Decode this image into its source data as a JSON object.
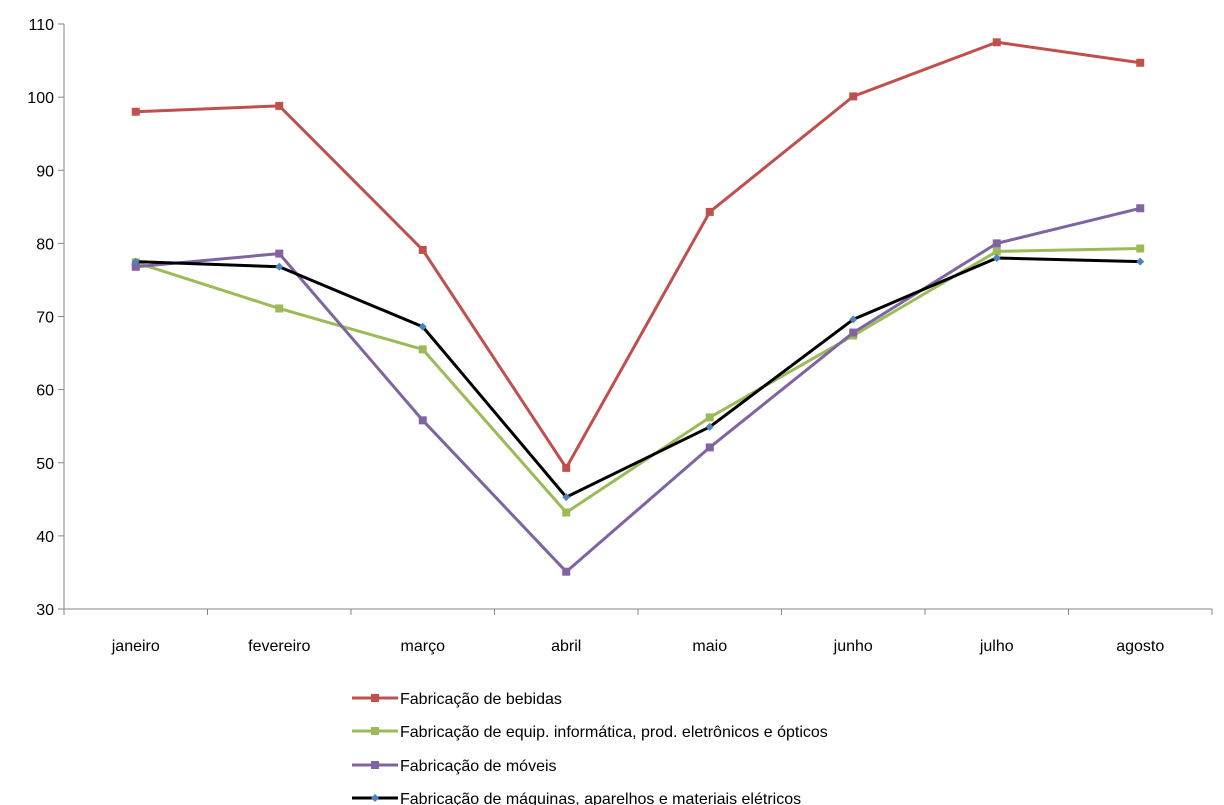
{
  "chart_data": {
    "type": "line",
    "title": "",
    "xlabel": "",
    "ylabel": "",
    "categories": [
      "janeiro",
      "fevereiro",
      "março",
      "abril",
      "maio",
      "junho",
      "julho",
      "agosto"
    ],
    "ylim": [
      30,
      110
    ],
    "yticks": [
      30,
      40,
      50,
      60,
      70,
      80,
      90,
      100,
      110
    ],
    "ytick_labels": [
      "30",
      "40",
      "50",
      "60",
      "70",
      "80",
      "90",
      "100",
      "110"
    ],
    "grid": false,
    "legend_position": "bottom",
    "series": [
      {
        "name": "Fabricação de bebidas",
        "color": "#c0504d",
        "marker": "square",
        "values": [
          98.0,
          98.8,
          79.1,
          49.3,
          84.3,
          100.1,
          107.5,
          104.7
        ]
      },
      {
        "name": "Fabricação de equip. informática, prod. eletrônicos e ópticos",
        "color": "#9bbb59",
        "marker": "square",
        "values": [
          77.4,
          71.1,
          65.5,
          43.2,
          56.2,
          67.4,
          78.9,
          79.3
        ]
      },
      {
        "name": "Fabricação de móveis",
        "color": "#8064a2",
        "marker": "square",
        "values": [
          76.8,
          78.6,
          55.8,
          35.1,
          52.1,
          67.8,
          80.0,
          84.8
        ]
      },
      {
        "name": "Fabricação de máquinas, aparelhos e materiais elétricos",
        "color": "#000000",
        "marker": "diamond",
        "marker_color": "#4f81bd",
        "values": [
          77.5,
          76.8,
          68.6,
          45.3,
          54.9,
          69.6,
          78.0,
          77.5
        ]
      }
    ]
  }
}
